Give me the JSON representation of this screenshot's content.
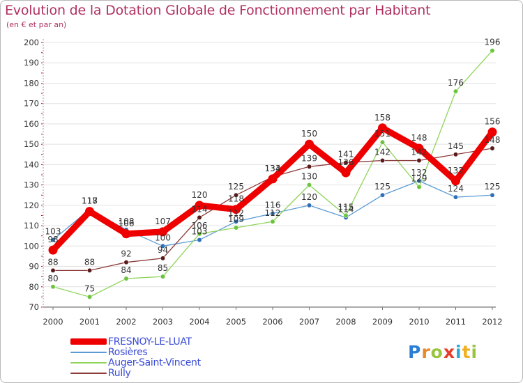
{
  "title": "Evolution de la Dotation Globale de Fonctionnement par Habitant",
  "subtitle": "(en € et par an)",
  "logo": {
    "letters": [
      {
        "ch": "P",
        "color": "#2a7fd4"
      },
      {
        "ch": "r",
        "color": "#e8892a"
      },
      {
        "ch": "o",
        "color": "#9ac43c"
      },
      {
        "ch": "x",
        "color": "#e83a2a"
      },
      {
        "ch": "i",
        "color": "#2aa8d4"
      },
      {
        "ch": "t",
        "color": "#f0b020"
      },
      {
        "ch": "i",
        "color": "#9ac43c"
      }
    ]
  },
  "chart_data": {
    "type": "line",
    "title": "Evolution de la Dotation Globale de Fonctionnement par Habitant",
    "ylabel": "(en € et par an)",
    "xlabel": "",
    "ylim": [
      70,
      200
    ],
    "yticks": [
      70,
      80,
      90,
      100,
      110,
      120,
      130,
      140,
      150,
      160,
      170,
      180,
      190,
      200
    ],
    "categories": [
      "2000",
      "2001",
      "2002",
      "2003",
      "2004",
      "2005",
      "2006",
      "2007",
      "2008",
      "2009",
      "2010",
      "2011",
      "2012"
    ],
    "legend_position": "bottom-left",
    "series": [
      {
        "name": "Rosières",
        "color": "#5b9bd5",
        "marker": "#2f6fb5",
        "width": 1.3,
        "values": [
          103,
          118,
          108,
          100,
          103,
          112,
          116,
          120,
          114,
          125,
          132,
          124,
          125
        ],
        "labels": [
          "103",
          "118",
          "108",
          "100",
          "103",
          "112",
          "116",
          "120",
          "114",
          "125",
          "132",
          "124",
          "125"
        ]
      },
      {
        "name": "Auger-Saint-Vincent",
        "color": "#8ed45a",
        "marker": "#6cc43c",
        "width": 1.3,
        "values": [
          80,
          75,
          84,
          85,
          106,
          109,
          112,
          130,
          115,
          151,
          129,
          176,
          196
        ],
        "labels": [
          "80",
          "75",
          "84",
          "85",
          "106",
          "109",
          "112",
          "130",
          "115",
          "151",
          "129",
          "176",
          "196"
        ]
      },
      {
        "name": "Rully",
        "color": "#8b3a3a",
        "marker": "#5a1a1a",
        "width": 1.3,
        "values": [
          88,
          88,
          92,
          94,
          114,
          125,
          134,
          139,
          141,
          142,
          142,
          145,
          148
        ],
        "labels": [
          "88",
          "88",
          "92",
          "94",
          "114",
          "125",
          "134",
          "139",
          "141",
          "142",
          "142",
          "145",
          "148"
        ]
      },
      {
        "name": "FRESNOY-LE-LUAT",
        "color": "#ee0000",
        "marker": "#ee0000",
        "width": 9,
        "values": [
          98,
          117,
          106,
          107,
          120,
          118,
          133,
          150,
          136,
          158,
          148,
          132,
          156
        ],
        "labels": [
          "98",
          "117",
          "106",
          "107",
          "120",
          "118",
          "133",
          "150",
          "136",
          "158",
          "148",
          "132",
          "156"
        ]
      }
    ],
    "legend_order": [
      "FRESNOY-LE-LUAT",
      "Rosières",
      "Auger-Saint-Vincent",
      "Rully"
    ]
  }
}
